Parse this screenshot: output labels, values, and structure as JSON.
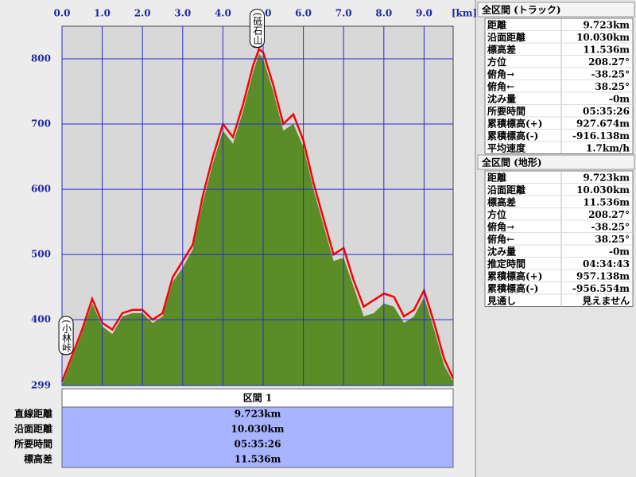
{
  "chart_data": {
    "type": "line",
    "x": [
      0.0,
      0.25,
      0.5,
      0.75,
      1.0,
      1.25,
      1.5,
      1.75,
      2.0,
      2.25,
      2.5,
      2.75,
      3.0,
      3.25,
      3.5,
      3.75,
      4.0,
      4.25,
      4.5,
      4.75,
      4.9,
      5.0,
      5.25,
      5.5,
      5.75,
      6.0,
      6.25,
      6.5,
      6.75,
      7.0,
      7.25,
      7.5,
      7.75,
      8.0,
      8.25,
      8.5,
      8.75,
      9.0,
      9.25,
      9.5,
      9.723
    ],
    "series": [
      {
        "color": "#5a8c28",
        "area": true,
        "values": [
          300,
          340,
          380,
          425,
          390,
          378,
          405,
          410,
          410,
          395,
          405,
          458,
          480,
          508,
          580,
          640,
          690,
          670,
          720,
          780,
          808,
          800,
          750,
          690,
          700,
          665,
          600,
          545,
          490,
          495,
          450,
          405,
          410,
          425,
          420,
          395,
          405,
          435,
          385,
          330,
          305
        ]
      },
      {
        "color": "#ff0000",
        "values": [
          305,
          345,
          385,
          432,
          395,
          385,
          410,
          415,
          415,
          400,
          410,
          465,
          490,
          515,
          590,
          650,
          700,
          680,
          730,
          790,
          815,
          810,
          760,
          700,
          715,
          675,
          610,
          555,
          500,
          510,
          460,
          420,
          430,
          440,
          435,
          405,
          415,
          445,
          395,
          340,
          310
        ]
      }
    ],
    "xlim": [
      0,
      9.723
    ],
    "ylim": [
      299,
      850
    ],
    "xticks": [
      {
        "value": 0,
        "label": "0.0"
      },
      {
        "value": 1,
        "label": "1.0"
      },
      {
        "value": 2,
        "label": "2.0"
      },
      {
        "value": 3,
        "label": "3.0"
      },
      {
        "value": 4,
        "label": "4.0"
      },
      {
        "value": 5,
        "label": "5.0"
      },
      {
        "value": 6,
        "label": "6.0"
      },
      {
        "value": 7,
        "label": "7.0"
      },
      {
        "value": 8,
        "label": "8.0"
      },
      {
        "value": 9,
        "label": "9.0"
      }
    ],
    "yticks": [
      299,
      400,
      500,
      600,
      700,
      800
    ],
    "x_unit": "[km]",
    "grid": true,
    "annotations": [
      {
        "text": "(小林峠)",
        "x": 0.1,
        "y": 400
      },
      {
        "text": "(砥石山)",
        "x": 4.85,
        "y": 815
      }
    ]
  },
  "section": {
    "title": "区間 1",
    "rows": [
      [
        "直線距離",
        "9.723km"
      ],
      [
        "沿面距離",
        "10.030km"
      ],
      [
        "所要時間",
        "05:35:26"
      ],
      [
        "標高差",
        "11.536m"
      ]
    ]
  },
  "panels": [
    {
      "title": "全区間 (トラック)",
      "rows": [
        [
          "距離",
          "9.723km"
        ],
        [
          "沿面距離",
          "10.030km"
        ],
        [
          "標高差",
          "11.536m"
        ],
        [
          "方位",
          "208.27°"
        ],
        [
          "俯角→",
          "-38.25°"
        ],
        [
          "俯角←",
          "38.25°"
        ],
        [
          "沈み量",
          "-0m"
        ],
        [
          "所要時間",
          "05:35:26"
        ],
        [
          "累積標高(+)",
          "927.674m"
        ],
        [
          "累積標高(-)",
          "-916.138m"
        ],
        [
          "平均速度",
          "1.7km/h"
        ]
      ]
    },
    {
      "title": "全区間 (地形)",
      "rows": [
        [
          "距離",
          "9.723km"
        ],
        [
          "沿面距離",
          "10.030km"
        ],
        [
          "標高差",
          "11.536m"
        ],
        [
          "方位",
          "208.27°"
        ],
        [
          "俯角→",
          "-38.25°"
        ],
        [
          "俯角←",
          "38.25°"
        ],
        [
          "沈み量",
          "-0m"
        ],
        [
          "推定時間",
          "04:34:43"
        ],
        [
          "累積標高(+)",
          "957.138m"
        ],
        [
          "累積標高(-)",
          "-956.554m"
        ],
        [
          "見通し",
          "見えません"
        ]
      ]
    }
  ]
}
